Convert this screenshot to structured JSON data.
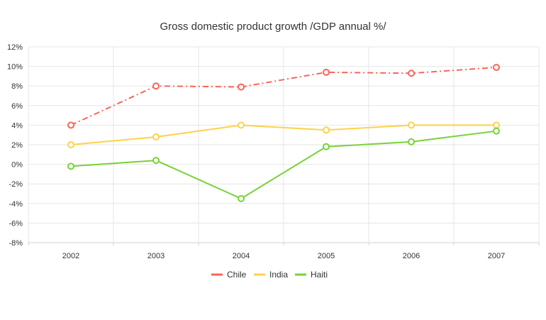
{
  "chart_data": {
    "type": "line",
    "title": "Gross domestic product growth /GDP annual %/",
    "xlabel": "",
    "ylabel": "",
    "categories": [
      "2002",
      "2003",
      "2004",
      "2005",
      "2006",
      "2007"
    ],
    "ylim": [
      -8,
      12
    ],
    "y_ticks": [
      -8,
      -6,
      -4,
      -2,
      0,
      2,
      4,
      6,
      8,
      10,
      12
    ],
    "y_tick_labels": [
      "-8%",
      "-6%",
      "-4%",
      "-2%",
      "0%",
      "2%",
      "4%",
      "6%",
      "8%",
      "10%",
      "12%"
    ],
    "grid": true,
    "legend_position": "bottom-center",
    "series": [
      {
        "name": "Chile",
        "color": "#ff6358",
        "dash": "dash-dot",
        "values": [
          4.0,
          8.0,
          7.9,
          9.4,
          9.3,
          9.9
        ]
      },
      {
        "name": "India",
        "color": "#ffd246",
        "dash": "solid",
        "values": [
          2.0,
          2.8,
          4.0,
          3.5,
          4.0,
          4.0
        ]
      },
      {
        "name": "Haiti",
        "color": "#78d237",
        "dash": "solid",
        "values": [
          -0.2,
          0.4,
          -3.5,
          1.8,
          2.3,
          3.4
        ]
      }
    ]
  }
}
